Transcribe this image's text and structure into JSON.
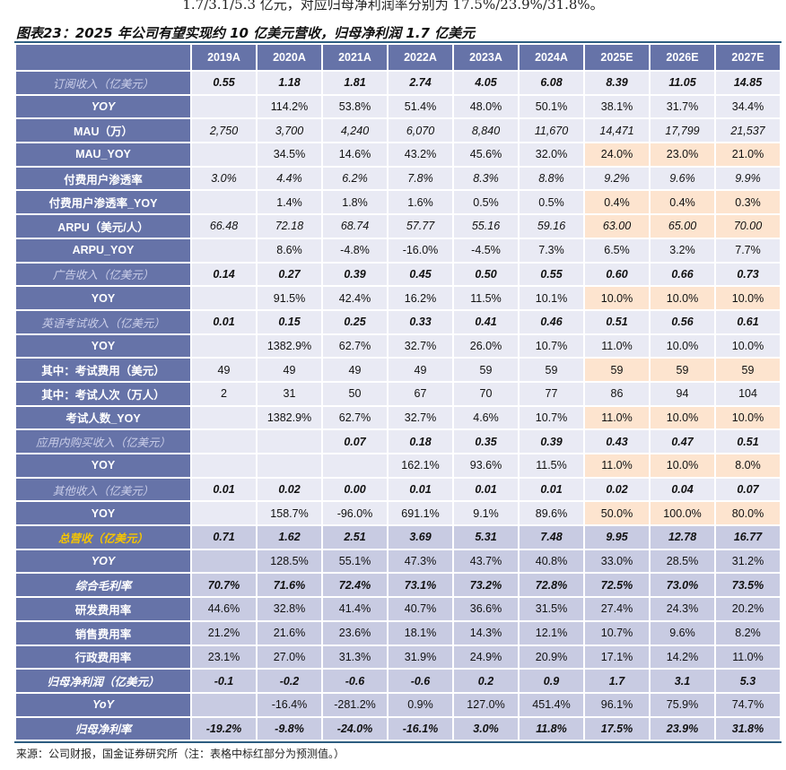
{
  "top_text": "1.7/3.1/5.3 亿元，对应归母净利润率分别为 17.5%/23.9%/31.8%。",
  "title": "图表23：2025 年公司有望实现约 10 亿美元营收，归母净利润 1.7 亿美元",
  "colors": {
    "header_bg": "#6673a8",
    "cell_bg": "#e9eaf4",
    "lower_cell_bg": "#c8cbe2",
    "forecast_highlight": "#fde4cf",
    "total_label": "#f6c500",
    "rule": "#2d5d80"
  },
  "table": {
    "columns": [
      "2019A",
      "2020A",
      "2021A",
      "2022A",
      "2023A",
      "2024A",
      "2025E",
      "2026E",
      "2027E"
    ],
    "rows": [
      {
        "label": "订阅收入（亿美元）",
        "label_style": "rev",
        "value_style": "bi",
        "values": [
          "0.55",
          "1.18",
          "1.81",
          "2.74",
          "4.05",
          "6.08",
          "8.39",
          "11.05",
          "14.85"
        ]
      },
      {
        "label": "YOY",
        "label_style": "ital",
        "value_style": "n",
        "values": [
          "",
          "114.2%",
          "53.8%",
          "51.4%",
          "48.0%",
          "50.1%",
          "38.1%",
          "31.7%",
          "34.4%"
        ]
      },
      {
        "label": "MAU（万）",
        "label_style": "n",
        "value_style": "i",
        "values": [
          "2,750",
          "3,700",
          "4,240",
          "6,070",
          "8,840",
          "11,670",
          "14,471",
          "17,799",
          "21,537"
        ]
      },
      {
        "label": "MAU_YOY",
        "label_style": "n",
        "value_style": "n",
        "highlight": true,
        "values": [
          "",
          "34.5%",
          "14.6%",
          "43.2%",
          "45.6%",
          "32.0%",
          "24.0%",
          "23.0%",
          "21.0%"
        ]
      },
      {
        "label": "付费用户渗透率",
        "label_style": "n",
        "value_style": "i",
        "values": [
          "3.0%",
          "4.4%",
          "6.2%",
          "7.8%",
          "8.3%",
          "8.8%",
          "9.2%",
          "9.6%",
          "9.9%"
        ]
      },
      {
        "label": "付费用户渗透率_YOY",
        "label_style": "n",
        "value_style": "n",
        "highlight": true,
        "values": [
          "",
          "1.4%",
          "1.8%",
          "1.6%",
          "0.5%",
          "0.5%",
          "0.4%",
          "0.4%",
          "0.3%"
        ]
      },
      {
        "label": "ARPU（美元/人）",
        "label_style": "n",
        "value_style": "i",
        "highlight": true,
        "values": [
          "66.48",
          "72.18",
          "68.74",
          "57.77",
          "55.16",
          "59.16",
          "63.00",
          "65.00",
          "70.00"
        ]
      },
      {
        "label": "ARPU_YOY",
        "label_style": "n",
        "value_style": "n",
        "values": [
          "",
          "8.6%",
          "-4.8%",
          "-16.0%",
          "-4.5%",
          "7.3%",
          "6.5%",
          "3.2%",
          "7.7%"
        ]
      },
      {
        "label": "广告收入（亿美元）",
        "label_style": "rev",
        "value_style": "bi",
        "values": [
          "0.14",
          "0.27",
          "0.39",
          "0.45",
          "0.50",
          "0.55",
          "0.60",
          "0.66",
          "0.73"
        ]
      },
      {
        "label": "YOY",
        "label_style": "n",
        "value_style": "n",
        "highlight": true,
        "values": [
          "",
          "91.5%",
          "42.4%",
          "16.2%",
          "11.5%",
          "10.1%",
          "10.0%",
          "10.0%",
          "10.0%"
        ]
      },
      {
        "label": "英语考试收入（亿美元）",
        "label_style": "rev",
        "value_style": "bi",
        "values": [
          "0.01",
          "0.15",
          "0.25",
          "0.33",
          "0.41",
          "0.46",
          "0.51",
          "0.56",
          "0.61"
        ]
      },
      {
        "label": "YOY",
        "label_style": "n",
        "value_style": "n",
        "values": [
          "",
          "1382.9%",
          "62.7%",
          "32.7%",
          "26.0%",
          "10.7%",
          "11.0%",
          "10.0%",
          "10.0%"
        ]
      },
      {
        "label": "其中：考试费用（美元）",
        "label_style": "n",
        "value_style": "n",
        "highlight": true,
        "values": [
          "49",
          "49",
          "49",
          "49",
          "59",
          "59",
          "59",
          "59",
          "59"
        ]
      },
      {
        "label": "其中：考试人次（万人）",
        "label_style": "n",
        "value_style": "n",
        "values": [
          "2",
          "31",
          "50",
          "67",
          "70",
          "77",
          "86",
          "94",
          "104"
        ]
      },
      {
        "label": "考试人数_YOY",
        "label_style": "n",
        "value_style": "n",
        "highlight": true,
        "values": [
          "",
          "1382.9%",
          "62.7%",
          "32.7%",
          "4.6%",
          "10.7%",
          "11.0%",
          "10.0%",
          "10.0%"
        ]
      },
      {
        "label": "应用内购买收入（亿美元）",
        "label_style": "rev",
        "value_style": "bi",
        "values": [
          "",
          "",
          "0.07",
          "0.18",
          "0.35",
          "0.39",
          "0.43",
          "0.47",
          "0.51"
        ]
      },
      {
        "label": "YOY",
        "label_style": "n",
        "value_style": "n",
        "highlight": true,
        "values": [
          "",
          "",
          "",
          "162.1%",
          "93.6%",
          "11.5%",
          "11.0%",
          "10.0%",
          "8.0%"
        ]
      },
      {
        "label": "其他收入（亿美元）",
        "label_style": "rev",
        "value_style": "bi",
        "values": [
          "0.01",
          "0.02",
          "0.00",
          "0.01",
          "0.01",
          "0.01",
          "0.02",
          "0.04",
          "0.07"
        ]
      },
      {
        "label": "YOY",
        "label_style": "n",
        "value_style": "n",
        "highlight": true,
        "values": [
          "",
          "158.7%",
          "-96.0%",
          "691.1%",
          "9.1%",
          "89.6%",
          "50.0%",
          "100.0%",
          "80.0%"
        ]
      },
      {
        "label": "总营收（亿美元）",
        "label_style": "total",
        "value_style": "bi",
        "lower": true,
        "values": [
          "0.71",
          "1.62",
          "2.51",
          "3.69",
          "5.31",
          "7.48",
          "9.95",
          "12.78",
          "16.77"
        ]
      },
      {
        "label": "YOY",
        "label_style": "ital",
        "value_style": "n",
        "lower": true,
        "values": [
          "",
          "128.5%",
          "55.1%",
          "47.3%",
          "43.7%",
          "40.8%",
          "33.0%",
          "28.5%",
          "31.2%"
        ]
      },
      {
        "label": "综合毛利率",
        "label_style": "ital",
        "value_style": "bi",
        "lower": true,
        "values": [
          "70.7%",
          "71.6%",
          "72.4%",
          "73.1%",
          "73.2%",
          "72.8%",
          "72.5%",
          "73.0%",
          "73.5%"
        ]
      },
      {
        "label": "研发费用率",
        "label_style": "n",
        "value_style": "n",
        "lower": true,
        "values": [
          "44.6%",
          "32.8%",
          "41.4%",
          "40.7%",
          "36.6%",
          "31.5%",
          "27.4%",
          "24.3%",
          "20.2%"
        ]
      },
      {
        "label": "销售费用率",
        "label_style": "n",
        "value_style": "n",
        "lower": true,
        "values": [
          "21.2%",
          "21.6%",
          "23.6%",
          "18.1%",
          "14.3%",
          "12.1%",
          "10.7%",
          "9.6%",
          "8.2%"
        ]
      },
      {
        "label": "行政费用率",
        "label_style": "n",
        "value_style": "n",
        "lower": true,
        "values": [
          "23.1%",
          "27.0%",
          "31.3%",
          "31.9%",
          "24.9%",
          "20.9%",
          "17.1%",
          "14.2%",
          "11.0%"
        ]
      },
      {
        "label": "归母净利润（亿美元）",
        "label_style": "ital",
        "value_style": "bi",
        "lower": true,
        "values": [
          "-0.1",
          "-0.2",
          "-0.6",
          "-0.6",
          "0.2",
          "0.9",
          "1.7",
          "3.1",
          "5.3"
        ]
      },
      {
        "label": "YoY",
        "label_style": "ital",
        "value_style": "n",
        "lower": true,
        "values": [
          "",
          "-16.4%",
          "-281.2%",
          "0.9%",
          "127.0%",
          "451.4%",
          "96.1%",
          "75.9%",
          "74.7%"
        ]
      },
      {
        "label": "归母净利率",
        "label_style": "ital",
        "value_style": "bi",
        "lower": true,
        "values": [
          "-19.2%",
          "-9.8%",
          "-24.0%",
          "-16.1%",
          "3.0%",
          "11.8%",
          "17.5%",
          "23.9%",
          "31.8%"
        ]
      }
    ]
  },
  "source": "来源：公司财报，国金证券研究所（注：表格中标红部分为预测值。）"
}
